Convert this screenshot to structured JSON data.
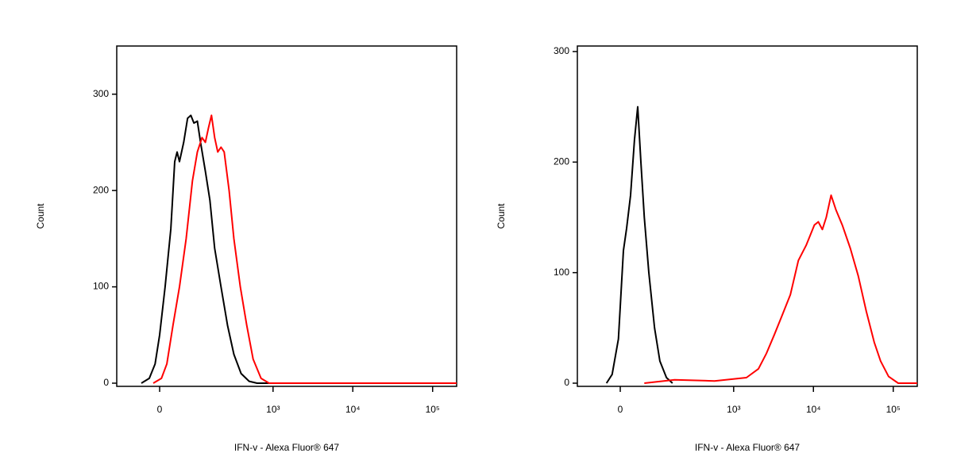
{
  "chart_data": [
    {
      "type": "line",
      "xlabel": "IFN-v - Alexa Fluor® 647",
      "ylabel": "Count",
      "xscale": "biexponential",
      "xlim": [
        -120,
        200000
      ],
      "ylim": [
        0,
        350
      ],
      "xticks": [
        0,
        {
          "value": 1000,
          "label": "10³"
        },
        {
          "value": 10000,
          "label": "10⁴"
        },
        {
          "value": 100000,
          "label": "10⁵"
        }
      ],
      "yticks": [
        0,
        100,
        200,
        300
      ],
      "series": [
        {
          "color": "#000000",
          "x": [
            -42,
            -23,
            -10,
            0,
            12,
            25,
            34,
            40,
            46,
            57,
            68,
            78,
            88,
            100,
            112,
            132,
            153,
            178,
            217,
            264,
            319,
            395,
            499,
            630,
            1000,
            200000
          ],
          "values": [
            0,
            5,
            20,
            50,
            100,
            160,
            230,
            240,
            230,
            250,
            275,
            278,
            270,
            272,
            250,
            220,
            190,
            140,
            100,
            60,
            30,
            10,
            2,
            0,
            0,
            0
          ]
        },
        {
          "color": "#ff0000",
          "x": [
            -14,
            4,
            16,
            30,
            46,
            64,
            83,
            100,
            118,
            132,
            146,
            161,
            178,
            196,
            217,
            239,
            277,
            319,
            386,
            466,
            561,
            707,
            891,
            2000,
            200000
          ],
          "values": [
            0,
            5,
            20,
            60,
            100,
            150,
            210,
            240,
            255,
            250,
            265,
            278,
            255,
            240,
            245,
            240,
            200,
            150,
            100,
            60,
            25,
            5,
            0,
            0,
            0
          ]
        }
      ]
    },
    {
      "type": "line",
      "xlabel": "IFN-v - Alexa Fluor® 647",
      "ylabel": "Count",
      "xscale": "biexponential",
      "xlim": [
        -120,
        200000
      ],
      "ylim": [
        0,
        305
      ],
      "xticks": [
        0,
        {
          "value": 1000,
          "label": "10³"
        },
        {
          "value": 10000,
          "label": "10⁴"
        },
        {
          "value": 100000,
          "label": "10⁵"
        }
      ],
      "yticks": [
        0,
        100,
        200,
        300
      ],
      "series": [
        {
          "color": "#000000",
          "x": [
            -31,
            -18,
            -4,
            7,
            14,
            23,
            32,
            40,
            48,
            57,
            70,
            88,
            107,
            134,
            163
          ],
          "values": [
            0,
            8,
            40,
            120,
            140,
            170,
            220,
            250,
            200,
            150,
            100,
            50,
            20,
            5,
            0
          ]
        },
        {
          "color": "#ff0000",
          "x": [
            57,
            174,
            574,
            1448,
            2044,
            2577,
            3245,
            4084,
            5145,
            6477,
            8150,
            10260,
            11520,
            12930,
            14490,
            16650,
            19120,
            23020,
            28970,
            36470,
            45900,
            57800,
            69400,
            87500,
            115300,
            200000
          ],
          "values": [
            0,
            3,
            2,
            5,
            13,
            27,
            44,
            62,
            80,
            111,
            125,
            143,
            146,
            139,
            150,
            170,
            157,
            143,
            122,
            97,
            65,
            37,
            20,
            6,
            0,
            0
          ]
        }
      ]
    }
  ]
}
